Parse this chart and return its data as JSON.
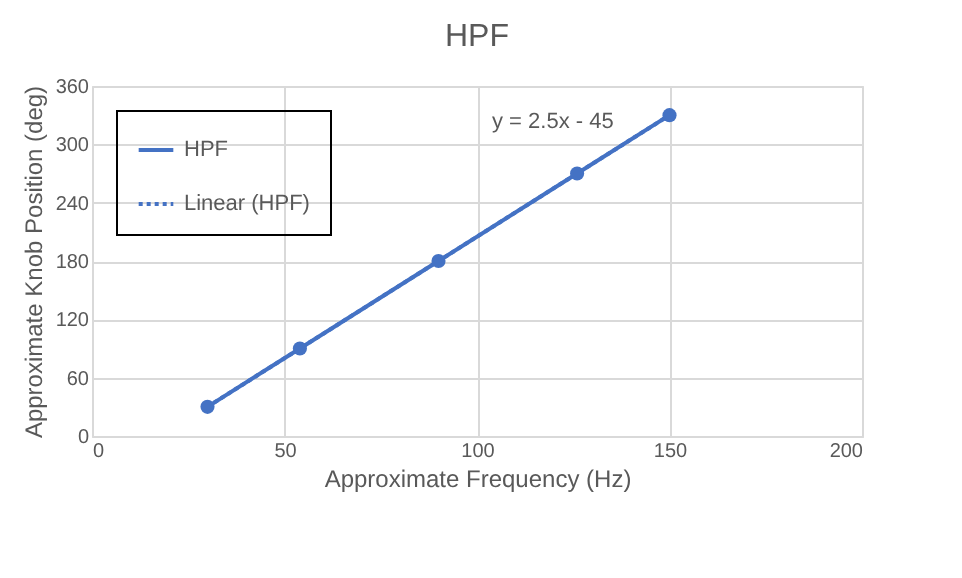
{
  "chart_data": {
    "type": "line",
    "title": "HPF",
    "xlabel": "Approximate Frequency (Hz)",
    "ylabel": "Approximate Knob Position (deg)",
    "x": [
      30,
      54,
      90,
      126,
      150
    ],
    "series": [
      {
        "name": "HPF",
        "color": "#4472c4",
        "values": [
          30,
          90,
          180,
          270,
          330
        ],
        "marker": "circle",
        "line_style": "solid"
      },
      {
        "name": "Linear (HPF)",
        "color": "#4472c4",
        "x": [
          30,
          150
        ],
        "values": [
          30,
          330
        ],
        "marker": "none",
        "line_style": "dotted"
      }
    ],
    "xlim": [
      0,
      200
    ],
    "xticks": [
      0,
      50,
      100,
      150,
      200
    ],
    "ylim": [
      0,
      360
    ],
    "yticks": [
      0,
      60,
      120,
      180,
      240,
      300,
      360
    ],
    "grid": true,
    "legend": "top left",
    "annotations": [
      "y = 2.5x - 45"
    ]
  }
}
